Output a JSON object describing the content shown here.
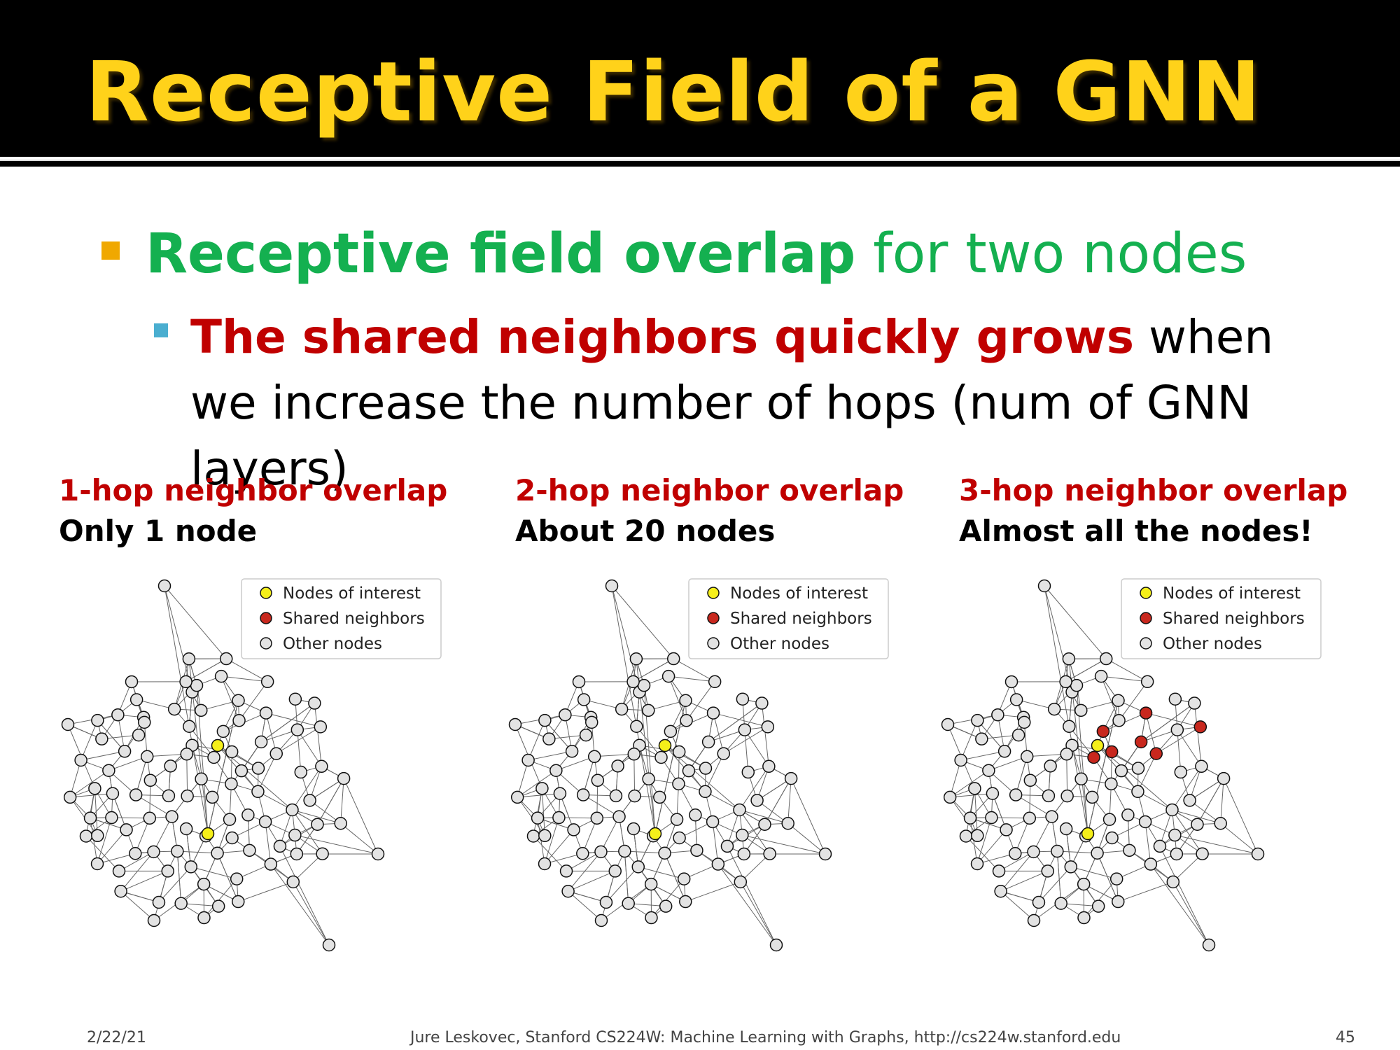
{
  "slide": {
    "title": "Receptive Field of a GNN",
    "bullet1": {
      "bold": "Receptive field overlap",
      "rest": " for two nodes"
    },
    "bullet2": {
      "bold": "The shared neighbors quickly grows",
      "rest": " when we increase the number of hops (num of GNN layers)"
    }
  },
  "panels": [
    {
      "heading": "1-hop neighbor overlap",
      "subheading": "Only 1 node"
    },
    {
      "heading": "2-hop neighbor overlap",
      "subheading": "About 20 nodes"
    },
    {
      "heading": "3-hop neighbor overlap",
      "subheading": "Almost all the nodes!"
    }
  ],
  "legend": {
    "interest": "Nodes of interest",
    "shared": "Shared neighbors",
    "other": "Other nodes"
  },
  "colors": {
    "interest": "#f5ef1a",
    "shared": "#c8281e",
    "other": "#e3e3e3",
    "edge": "#666666",
    "title": "#ffd21a",
    "green": "#14b050",
    "red": "#c00000"
  },
  "footer": {
    "date": "2/22/21",
    "credit": "Jure Leskovec, Stanford CS224W: Machine Learning with Graphs, http://cs224w.stanford.edu",
    "page": "45"
  }
}
